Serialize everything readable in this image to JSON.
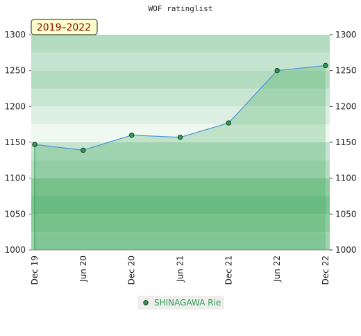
{
  "chart_data": {
    "type": "line",
    "title": "WOF ratinglist",
    "annotation": "2019–2022",
    "categories": [
      "Dec 19",
      "Jun 20",
      "Dec 20",
      "Jun 21",
      "Dec 21",
      "Jun 22",
      "Dec 22"
    ],
    "series": [
      {
        "name": "SHINAGAWA Rie",
        "color": "#2e9e4e",
        "values": [
          1147,
          1139,
          1160,
          1157,
          1177,
          1250,
          1257
        ]
      }
    ],
    "ylim": [
      1000,
      1300
    ],
    "yticks": [
      1000,
      1050,
      1100,
      1150,
      1200,
      1250,
      1300
    ],
    "y2lim": [
      1000,
      1300
    ],
    "y2ticks": [
      1000,
      1050,
      1100,
      1150,
      1200,
      1250,
      1300
    ]
  }
}
